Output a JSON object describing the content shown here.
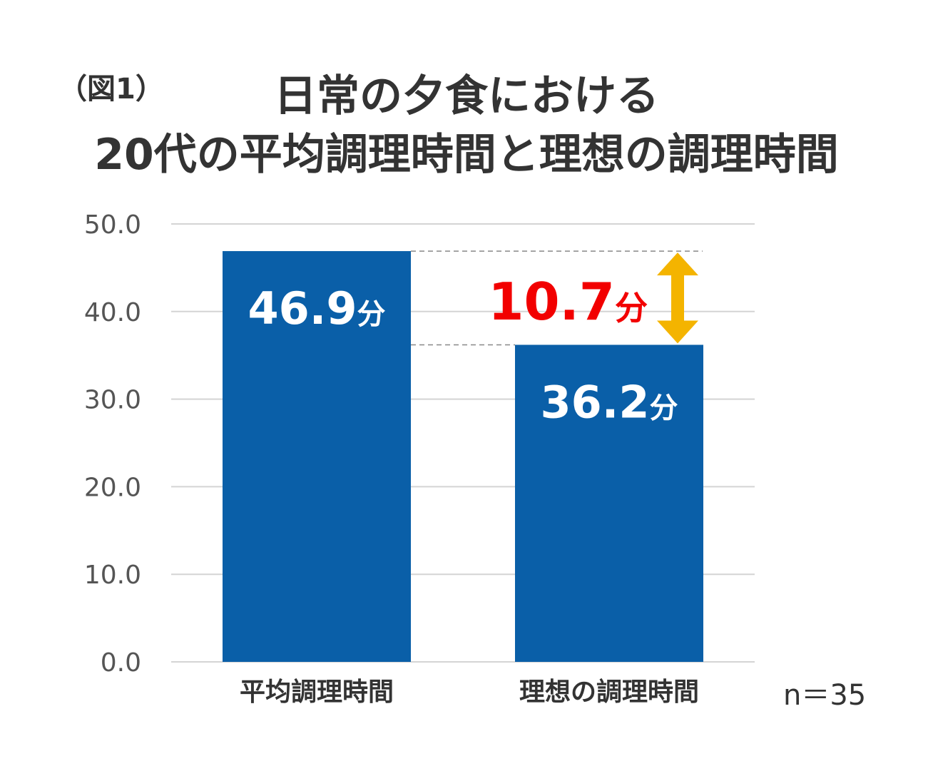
{
  "figure_label": "（図1）",
  "title_line1": "日常の夕食における",
  "title_line2": "20代の平均調理時間と理想の調理時間",
  "sample_size": "n＝35",
  "difference_label": "10.7分",
  "colors": {
    "bar": "#0A5FA8",
    "difference_text": "#F20000",
    "arrow": "#F4B400",
    "gridline": "#D4D4D4",
    "dashed_line": "#888888",
    "text": "#333333",
    "tick_text": "#555555"
  },
  "chart_data": {
    "type": "bar",
    "categories": [
      "平均調理時間",
      "理想の調理時間"
    ],
    "values": [
      46.9,
      36.2
    ],
    "data_labels": [
      "46.9分",
      "36.2分"
    ],
    "yticks": [
      "0.0",
      "10.0",
      "20.0",
      "30.0",
      "40.0",
      "50.0"
    ],
    "ylim": [
      0,
      50
    ],
    "grid": true,
    "annotation": {
      "text": "10.7分",
      "from": 46.9,
      "to": 36.2
    }
  }
}
